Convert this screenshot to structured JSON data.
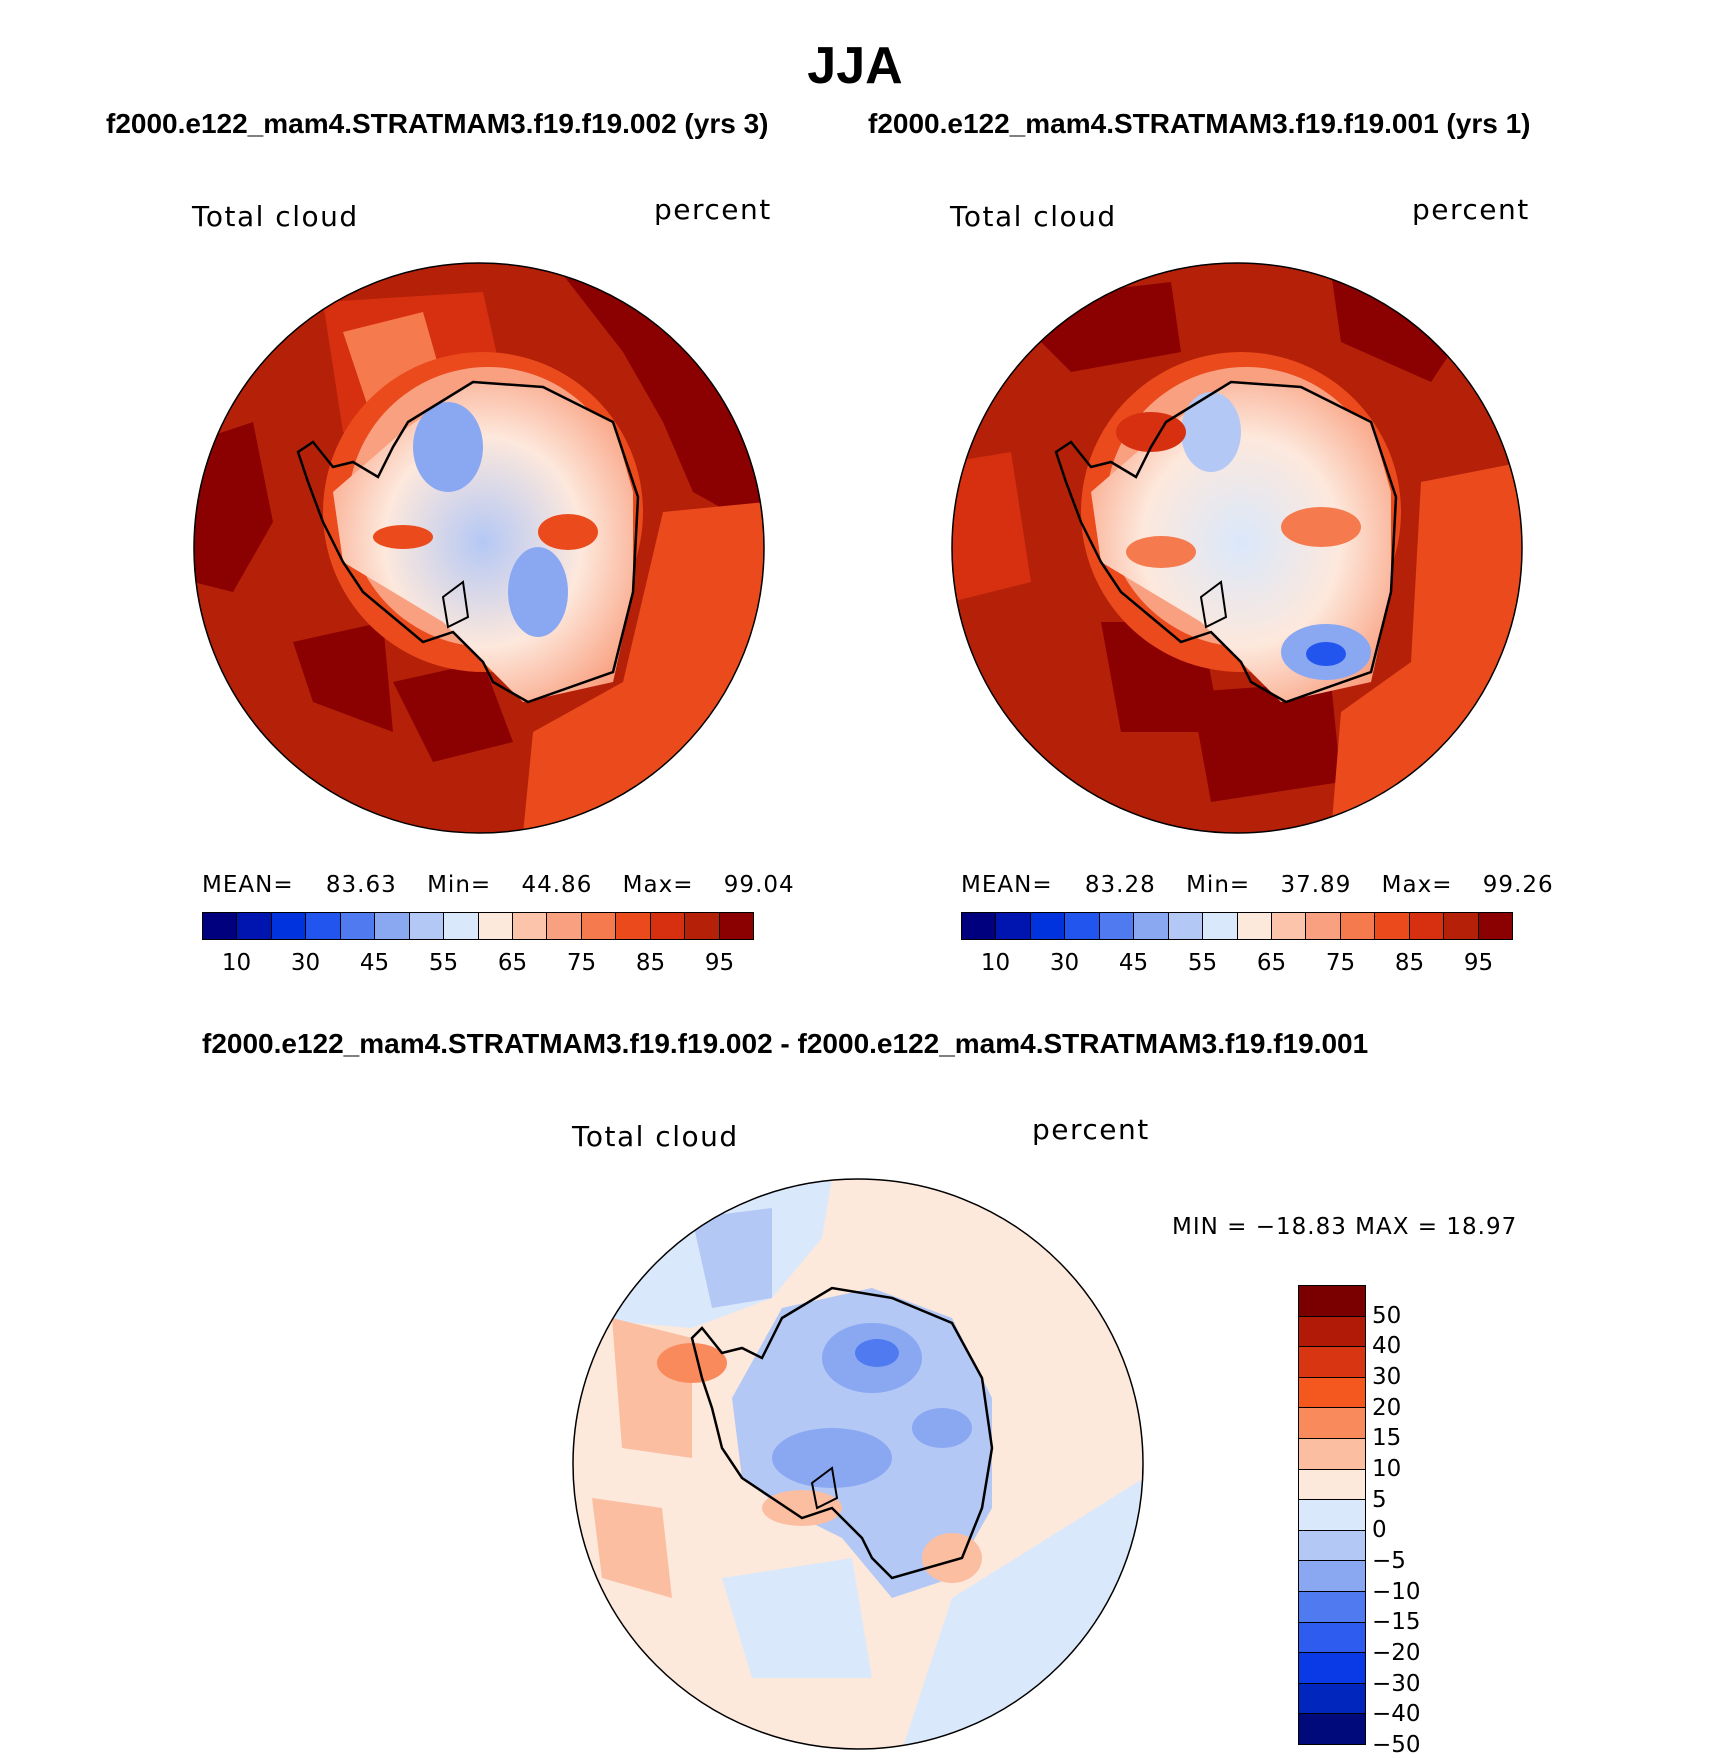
{
  "title": "JJA",
  "panel1": {
    "subtitle": "f2000.e122_mam4.STRATMAM3.f19.f19.002 (yrs 3)",
    "left_label": "Total cloud",
    "right_label": "percent",
    "stats": {
      "mean_label": "MEAN=",
      "mean": "83.63",
      "min_label": "Min=",
      "min": "44.86",
      "max_label": "Max=",
      "max": "99.04"
    }
  },
  "panel2": {
    "subtitle": "f2000.e122_mam4.STRATMAM3.f19.f19.001 (yrs 1)",
    "left_label": "Total cloud",
    "right_label": "percent",
    "stats": {
      "mean_label": "MEAN=",
      "mean": "83.28",
      "min_label": "Min=",
      "min": "37.89",
      "max_label": "Max=",
      "max": "99.26"
    }
  },
  "panel3": {
    "subtitle": "f2000.e122_mam4.STRATMAM3.f19.f19.002 - f2000.e122_mam4.STRATMAM3.f19.f19.001",
    "left_label": "Total cloud",
    "right_label": "percent",
    "minmax": "MIN = −18.83 MAX =   18.97"
  },
  "abs_colorbar": {
    "colors": [
      "#00007f",
      "#0015b0",
      "#0033dd",
      "#2255ee",
      "#4f7af0",
      "#8aa8f2",
      "#b4c8f5",
      "#dae8fb",
      "#fde8dc",
      "#fcc4aa",
      "#f9a080",
      "#f57a4e",
      "#ea4a1c",
      "#d63010",
      "#b52008",
      "#8b0000"
    ],
    "ticks": [
      "10",
      "30",
      "45",
      "55",
      "65",
      "75",
      "85",
      "95"
    ]
  },
  "diff_colorbar": {
    "colors": [
      "#7a0000",
      "#b01a06",
      "#d83512",
      "#f4581e",
      "#f98a5c",
      "#fbbea0",
      "#fde8dc",
      "#dae8fb",
      "#b4c8f5",
      "#8aa8f2",
      "#4f7af0",
      "#2d5cee",
      "#0a3ae6",
      "#0026bd",
      "#000a7a"
    ],
    "ticks": [
      "50",
      "40",
      "30",
      "20",
      "15",
      "10",
      "5",
      "0",
      "−5",
      "−10",
      "−15",
      "−20",
      "−30",
      "−40",
      "−50"
    ]
  },
  "chart_data": [
    {
      "type": "heatmap",
      "title": "f2000.e122_mam4.STRATMAM3.f19.f19.002 (yrs 3)",
      "variable": "Total cloud",
      "units": "percent",
      "mean": 83.63,
      "min": 44.86,
      "max": 99.04,
      "levels": [
        10,
        30,
        45,
        55,
        65,
        75,
        85,
        95
      ]
    },
    {
      "type": "heatmap",
      "title": "f2000.e122_mam4.STRATMAM3.f19.f19.001 (yrs 1)",
      "variable": "Total cloud",
      "units": "percent",
      "mean": 83.28,
      "min": 37.89,
      "max": 99.26,
      "levels": [
        10,
        30,
        45,
        55,
        65,
        75,
        85,
        95
      ]
    },
    {
      "type": "heatmap",
      "title": "f2000.e122_mam4.STRATMAM3.f19.f19.002 - f2000.e122_mam4.STRATMAM3.f19.f19.001",
      "variable": "Total cloud",
      "units": "percent",
      "min": -18.83,
      "max": 18.97,
      "levels": [
        -50,
        -40,
        -30,
        -20,
        -15,
        -10,
        -5,
        0,
        5,
        10,
        15,
        20,
        30,
        40,
        50
      ]
    }
  ]
}
